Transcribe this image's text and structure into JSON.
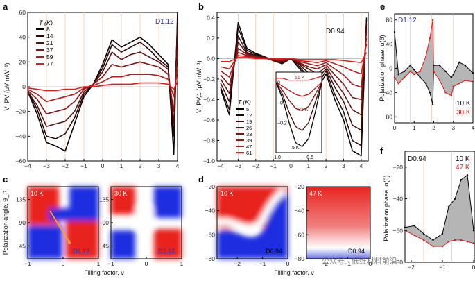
{
  "panels": {
    "a": {
      "letter": "a",
      "tag": "D1.12",
      "ylabel": "V_PV (μV mW⁻¹)",
      "legend_title": "T (K)",
      "temps": [
        "8",
        "14",
        "21",
        "37",
        "59",
        "77"
      ],
      "colors": [
        "#000000",
        "#2a0606",
        "#5a0c0c",
        "#8a1010",
        "#bb1414",
        "#e21a1a"
      ]
    },
    "b": {
      "letter": "b",
      "tag": "D0.94",
      "ylabel": "V_PV,1 (μV mW⁻¹)",
      "legend_title": "T (K)",
      "temps": [
        "5",
        "12",
        "19",
        "26",
        "33",
        "39",
        "47",
        "61"
      ],
      "colors": [
        "#000000",
        "#200505",
        "#400909",
        "#600d0d",
        "#801111",
        "#a01414",
        "#c01717",
        "#e21a1a"
      ],
      "inset_labels": [
        "61 K",
        "33 K",
        "5 K"
      ]
    },
    "c": {
      "letter": "c",
      "ylabel": "Polarization angle, θ_P",
      "xlabel": "Filling factor, ν",
      "left_temp": "10 K",
      "right_temp": "30 K",
      "left_tag": "D1.12",
      "right_tag": "D1.12"
    },
    "d": {
      "letter": "d",
      "xlabel": "Filling factor, ν",
      "left_temp": "10 K",
      "right_temp": "47 K",
      "left_tag": "D0.94",
      "right_tag": "D0.94"
    },
    "e": {
      "letter": "e",
      "tag": "D1.12",
      "ylabel": "Polarization phase, α(θ)",
      "legend": [
        "10 K",
        "30 K"
      ]
    },
    "f": {
      "letter": "f",
      "tag": "D0.94",
      "ylabel": "Polarization phase, α(θ)",
      "legend": [
        "10 K",
        "47 K"
      ]
    }
  },
  "watermark": "公众号 · 低维材料前沿",
  "chart_data": [
    {
      "id": "a",
      "type": "line",
      "title": "",
      "xlabel": "",
      "ylabel": "V_PV (μV mW⁻¹)",
      "xlim": [
        -4,
        4
      ],
      "ylim": [
        -60,
        60
      ],
      "xticks": [
        -4,
        -3,
        -2,
        -1,
        0,
        1,
        2,
        3,
        4
      ],
      "yticks": [
        -60,
        -40,
        -20,
        0,
        20,
        40,
        60
      ],
      "x": [
        -4,
        -3.5,
        -3,
        -2.5,
        -2,
        -1.5,
        -1,
        -0.5,
        0,
        0.5,
        1,
        1.5,
        2,
        2.5,
        3,
        3.5,
        3.8,
        4
      ],
      "series": [
        {
          "name": "8 K",
          "values": [
            -4,
            -22,
            -45,
            -48,
            -52,
            -30,
            -8,
            2,
            18,
            38,
            32,
            36,
            40,
            34,
            26,
            18,
            -55,
            60
          ]
        },
        {
          "name": "14 K",
          "values": [
            -4,
            -18,
            -40,
            -42,
            -38,
            -25,
            -6,
            2,
            15,
            34,
            28,
            32,
            36,
            30,
            22,
            16,
            -40,
            55
          ]
        },
        {
          "name": "21 K",
          "values": [
            -4,
            -15,
            -32,
            -30,
            -28,
            -20,
            -4,
            2,
            12,
            28,
            22,
            26,
            28,
            24,
            20,
            14,
            -30,
            48
          ]
        },
        {
          "name": "37 K",
          "values": [
            -3,
            -10,
            -22,
            -20,
            -18,
            -12,
            -2,
            2,
            8,
            18,
            16,
            18,
            20,
            18,
            16,
            10,
            -20,
            30
          ]
        },
        {
          "name": "59 K",
          "values": [
            -2,
            -6,
            -12,
            -10,
            -8,
            -6,
            -1,
            1,
            4,
            8,
            8,
            10,
            10,
            10,
            9,
            6,
            -8,
            14
          ]
        },
        {
          "name": "77 K",
          "values": [
            -1,
            -2,
            -3,
            -3,
            -2,
            -2,
            0,
            0,
            1,
            2,
            2,
            2,
            3,
            3,
            3,
            2,
            -2,
            4
          ]
        }
      ]
    },
    {
      "id": "b",
      "type": "line",
      "title": "",
      "xlabel": "",
      "ylabel": "V_PV,1 (μV mW⁻¹)",
      "xlim": [
        -4.2,
        4.4
      ],
      "ylim": [
        -1.0,
        0.45
      ],
      "xticks": [
        -4,
        -3,
        -2,
        -1,
        0,
        1,
        2,
        3,
        4
      ],
      "yticks": [
        -1.0,
        -0.8,
        -0.6,
        -0.4,
        -0.2,
        0,
        0.2,
        0.4
      ],
      "x": [
        -4,
        -3.5,
        -3,
        -2.5,
        -2,
        -1.5,
        -1,
        -0.5,
        0,
        0.5,
        1,
        1.5,
        2,
        2.5,
        3,
        3.5,
        4,
        4.3
      ],
      "series": [
        {
          "name": "5 K",
          "values": [
            -0.3,
            -0.55,
            0.35,
            0.1,
            0.05,
            0.02,
            -0.02,
            -0.05,
            0,
            -0.1,
            -0.2,
            -0.3,
            -0.15,
            -0.4,
            -0.6,
            -0.9,
            -0.95,
            0.4
          ]
        },
        {
          "name": "12 K",
          "values": [
            -0.28,
            -0.5,
            0.3,
            0.08,
            0.04,
            0.02,
            -0.02,
            -0.05,
            0,
            -0.08,
            -0.18,
            -0.26,
            -0.12,
            -0.35,
            -0.52,
            -0.8,
            -0.85,
            0.38
          ]
        },
        {
          "name": "19 K",
          "values": [
            -0.24,
            -0.42,
            0.22,
            0.06,
            0.03,
            0.01,
            -0.02,
            -0.04,
            0,
            -0.06,
            -0.14,
            -0.2,
            -0.1,
            -0.28,
            -0.42,
            -0.65,
            -0.7,
            0.34
          ]
        },
        {
          "name": "26 K",
          "values": [
            -0.2,
            -0.34,
            0.16,
            0.05,
            0.02,
            0.01,
            -0.01,
            -0.03,
            0,
            -0.05,
            -0.1,
            -0.15,
            -0.08,
            -0.22,
            -0.34,
            -0.5,
            -0.55,
            0.3
          ]
        },
        {
          "name": "33 K",
          "values": [
            -0.16,
            -0.26,
            0.1,
            0.04,
            0.02,
            0.01,
            -0.01,
            -0.02,
            0,
            -0.04,
            -0.08,
            -0.1,
            -0.06,
            -0.16,
            -0.25,
            -0.38,
            -0.4,
            0.26
          ]
        },
        {
          "name": "39 K",
          "values": [
            -0.12,
            -0.18,
            0.06,
            0.03,
            0.01,
            0,
            -0.01,
            -0.02,
            0,
            -0.03,
            -0.05,
            -0.07,
            -0.04,
            -0.1,
            -0.16,
            -0.25,
            -0.28,
            0.2
          ]
        },
        {
          "name": "47 K",
          "values": [
            -0.08,
            -0.1,
            0.03,
            0.02,
            0.01,
            0,
            -0.01,
            -0.01,
            0,
            -0.02,
            -0.03,
            -0.04,
            -0.02,
            -0.05,
            -0.08,
            -0.12,
            -0.15,
            0.14
          ]
        },
        {
          "name": "61 K",
          "values": [
            -0.03,
            -0.03,
            0.01,
            0.01,
            0,
            0,
            0,
            0,
            0,
            -0.01,
            -0.01,
            -0.01,
            -0.01,
            -0.01,
            -0.02,
            -0.03,
            -0.04,
            0.06
          ]
        }
      ],
      "inset": {
        "xlim": [
          -1.0,
          -0.3
        ],
        "ylim": [
          -0.35,
          0.05
        ],
        "xticks": [
          -1.0,
          -0.5
        ],
        "yticks": [
          -0.2,
          -0.1,
          0
        ],
        "x": [
          -1.0,
          -0.9,
          -0.8,
          -0.7,
          -0.6,
          -0.5,
          -0.4,
          -0.3
        ],
        "series": [
          {
            "name": "5 K",
            "values": [
              0,
              -0.08,
              -0.2,
              -0.3,
              -0.32,
              -0.28,
              -0.15,
              0
            ]
          },
          {
            "name": "19 K",
            "values": [
              0,
              -0.06,
              -0.15,
              -0.22,
              -0.24,
              -0.2,
              -0.1,
              0
            ]
          },
          {
            "name": "33 K",
            "values": [
              0,
              -0.04,
              -0.09,
              -0.13,
              -0.14,
              -0.12,
              -0.06,
              0
            ]
          },
          {
            "name": "47 K",
            "values": [
              0,
              -0.02,
              -0.04,
              -0.06,
              -0.07,
              -0.06,
              -0.03,
              0
            ]
          },
          {
            "name": "61 K",
            "values": [
              0.02,
              0.02,
              0.01,
              0.01,
              0.01,
              0.01,
              0.02,
              0.03
            ]
          }
        ]
      }
    },
    {
      "id": "c",
      "type": "heatmap",
      "xlabel": "Filling factor, ν",
      "ylabel": "Polarization angle, θ_P",
      "left": {
        "temp": "10 K",
        "xlim": [
          -1,
          1
        ],
        "xticks": [
          -1,
          0,
          1
        ],
        "ylim": [
          20,
          160
        ],
        "yticks": [
          45,
          90,
          135
        ]
      },
      "right": {
        "temp": "30 K",
        "xlim": [
          -1,
          1
        ],
        "xticks": [
          -1,
          0,
          1
        ],
        "ylim": [
          20,
          160
        ],
        "yticks": [
          45,
          90,
          135
        ]
      }
    },
    {
      "id": "d",
      "type": "heatmap",
      "xlabel": "Filling factor, ν",
      "left": {
        "temp": "10 K",
        "xlim": [
          -2.8,
          0
        ],
        "xticks": [
          -2,
          -1,
          0
        ],
        "ylim": [
          -80,
          -20
        ],
        "yticks": [
          -80,
          -60,
          -40,
          -20
        ]
      },
      "right": {
        "temp": "47 K",
        "xlim": [
          -2.8,
          0
        ],
        "xticks": [
          -2,
          -1,
          0
        ],
        "ylim": [
          -80,
          -20
        ],
        "yticks": [
          -80,
          -60,
          -40,
          -20
        ]
      }
    },
    {
      "id": "e",
      "type": "area",
      "ylabel": "Polarization phase, α(θ)",
      "xlim": [
        0,
        4
      ],
      "ylim": [
        -90,
        90
      ],
      "xticks": [
        0,
        1,
        2,
        3,
        4
      ],
      "yticks": [
        -80,
        -40,
        0,
        40,
        80
      ],
      "x": [
        0,
        0.2,
        0.5,
        0.8,
        1.0,
        1.3,
        1.6,
        1.8,
        1.95,
        2.0,
        2.3,
        2.6,
        2.9,
        3.0,
        3.3,
        3.6,
        4.0
      ],
      "series": [
        {
          "name": "10 K",
          "values": [
            60,
            -10,
            -5,
            5,
            -2,
            -15,
            -25,
            -40,
            -60,
            5,
            5,
            -5,
            -15,
            -10,
            10,
            5,
            -8
          ]
        },
        {
          "name": "30 K",
          "values": [
            -15,
            -25,
            -15,
            -5,
            -10,
            -5,
            20,
            50,
            80,
            -5,
            -20,
            -40,
            -45,
            -30,
            -25,
            -20,
            -22
          ]
        }
      ]
    },
    {
      "id": "f",
      "type": "area",
      "ylabel": "Polarization phase, α(θ)",
      "xlim": [
        -2.2,
        0
      ],
      "ylim": [
        -80,
        -10
      ],
      "xticks": [
        -2,
        -1,
        0
      ],
      "yticks": [
        -80,
        -60,
        -40,
        -20
      ],
      "x": [
        -2.2,
        -1.9,
        -1.6,
        -1.3,
        -1.0,
        -0.8,
        -0.6,
        -0.4,
        -0.2,
        0
      ],
      "series": [
        {
          "name": "10 K",
          "values": [
            -58,
            -57,
            -62,
            -66,
            -62,
            -45,
            -40,
            -28,
            -25,
            -60
          ]
        },
        {
          "name": "47 K",
          "values": [
            -60,
            -63,
            -66,
            -70,
            -70,
            -67,
            -66,
            -66,
            -67,
            -68
          ]
        }
      ]
    }
  ]
}
